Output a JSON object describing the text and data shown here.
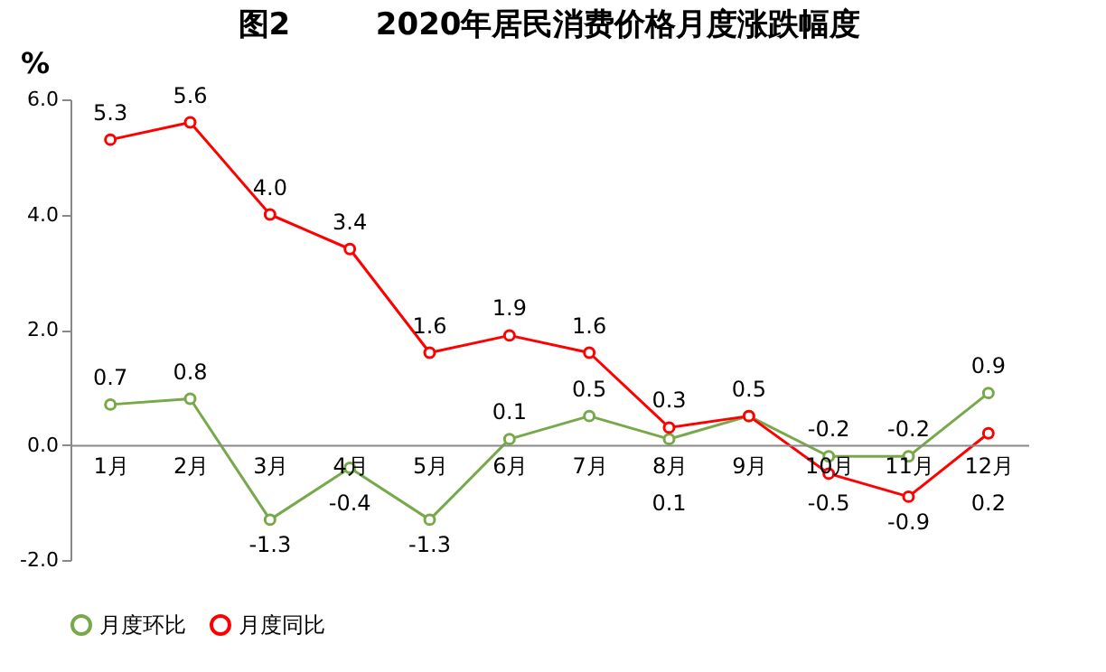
{
  "chart_data": {
    "type": "line",
    "title": "图2        2020年居民消费价格月度涨跌幅度",
    "ylabel": "%",
    "categories": [
      "1月",
      "2月",
      "3月",
      "4月",
      "5月",
      "6月",
      "7月",
      "8月",
      "9月",
      "10月",
      "11月",
      "12月"
    ],
    "series": [
      {
        "name": "月度环比",
        "color": "#77a94a",
        "values": [
          0.7,
          0.8,
          -1.3,
          -0.4,
          -1.3,
          0.1,
          0.5,
          0.1,
          0.5,
          -0.2,
          -0.2,
          0.9
        ],
        "value_labels": [
          "0.7",
          "0.8",
          "-1.3",
          "-0.4",
          "-1.3",
          "0.1",
          "0.5",
          "0.1",
          "0.5",
          "-0.2",
          "-0.2",
          "0.9"
        ]
      },
      {
        "name": "月度同比",
        "color": "#ff0000",
        "values": [
          5.3,
          5.6,
          4.0,
          3.4,
          1.6,
          1.9,
          1.6,
          0.3,
          0.5,
          -0.5,
          -0.9,
          0.2
        ],
        "value_labels": [
          "5.3",
          "5.6",
          "4.0",
          "3.4",
          "1.6",
          "1.9",
          "1.6",
          "0.3",
          null,
          "-0.5",
          "-0.9",
          "0.2"
        ]
      }
    ],
    "ylim": [
      -2,
      6
    ],
    "yticks": [
      {
        "value": -2,
        "label": "-2.0"
      },
      {
        "value": 0,
        "label": "0.0"
      },
      {
        "value": 2,
        "label": "2.0"
      },
      {
        "value": 4,
        "label": "4.0"
      },
      {
        "value": 6,
        "label": "6.0"
      }
    ],
    "grid": false,
    "legend": "bottom",
    "marker": "circle",
    "line_style": "solid"
  }
}
